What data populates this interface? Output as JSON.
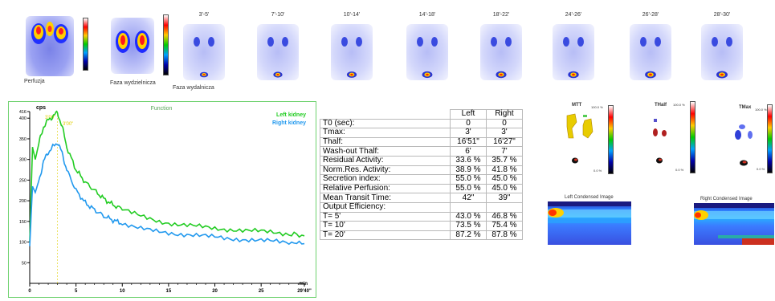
{
  "top_strip": {
    "labels": {
      "perfusion": "Perfuzja",
      "excretion_1": "Faza wydzielnicza",
      "excretion_2": "Faza wydalnicza"
    },
    "time_frames": [
      "3'-5'",
      "7'-10'",
      "10'-14'",
      "14'-18'",
      "18'-22'",
      "24'-26'",
      "26'-28'",
      "28'-30'"
    ]
  },
  "chart_data": {
    "type": "line",
    "title": "Function",
    "ylabel": "cps",
    "xlabel": "min",
    "ylim": [
      0,
      416
    ],
    "xlim": [
      0,
      29.67
    ],
    "y_ticks": [
      50,
      100,
      150,
      200,
      250,
      300,
      350,
      400,
      416
    ],
    "x_ticks": [
      "0",
      "5",
      "10",
      "15",
      "20",
      "25",
      "29'40\""
    ],
    "annotations": [
      "3'00\"",
      "3'00\""
    ],
    "series": [
      {
        "name": "Left kidney",
        "color": "#22cc22",
        "x": [
          0,
          0.3,
          0.6,
          1.0,
          1.5,
          2.0,
          2.5,
          3.0,
          3.5,
          4.0,
          5.0,
          6.0,
          7.0,
          8.0,
          9.0,
          10.0,
          12.0,
          14.0,
          16.0,
          18.0,
          20.0,
          22.0,
          24.0,
          26.0,
          28.0,
          29.67
        ],
        "y": [
          100,
          330,
          300,
          340,
          380,
          395,
          405,
          413,
          380,
          330,
          275,
          245,
          225,
          205,
          190,
          180,
          162,
          150,
          143,
          138,
          133,
          130,
          127,
          124,
          120,
          115
        ]
      },
      {
        "name": "Right kidney",
        "color": "#2299ee",
        "x": [
          0,
          0.3,
          0.6,
          1.0,
          1.5,
          2.0,
          2.5,
          3.0,
          3.5,
          4.0,
          5.0,
          6.0,
          7.0,
          8.0,
          9.0,
          10.0,
          12.0,
          14.0,
          16.0,
          18.0,
          20.0,
          22.0,
          24.0,
          26.0,
          28.0,
          29.67
        ],
        "y": [
          90,
          235,
          220,
          250,
          295,
          318,
          330,
          342,
          315,
          275,
          225,
          195,
          178,
          163,
          153,
          145,
          132,
          125,
          120,
          116,
          112,
          108,
          105,
          102,
          99,
          96
        ]
      }
    ]
  },
  "table": {
    "headers": [
      "",
      "Left",
      "Right"
    ],
    "rows": [
      [
        "T0 (sec):",
        "0",
        "0"
      ],
      [
        "Tmax:",
        "3'",
        "3'"
      ],
      [
        "Thalf:",
        "16'51\"",
        "16'27\""
      ],
      [
        "Wash-out Thalf:",
        "6'",
        "7'"
      ],
      [
        "Residual Activity:",
        "33.6 %",
        "35.7 %"
      ],
      [
        "Norm.Res. Activity:",
        "38.9 %",
        "41.8 %"
      ],
      [
        "Secretion index:",
        "55.0 %",
        "45.0 %"
      ],
      [
        "Relative Perfusion:",
        "55.0 %",
        "45.0 %"
      ],
      [
        "Mean Transit Time:",
        "42\"",
        "39\""
      ],
      [
        "Output Efficiency:",
        "",
        ""
      ],
      [
        "T=  5'",
        "43.0 %",
        "46.8 %"
      ],
      [
        "T= 10'",
        "73.5 %",
        "75.4 %"
      ],
      [
        "T= 20'",
        "87.2 %",
        "87.8 %"
      ]
    ]
  },
  "parametric": {
    "titles": [
      "MTT",
      "THalf",
      "TMax"
    ],
    "scale_top": "100.0 %",
    "scale_bottom": "0.0 %"
  },
  "condensed": {
    "left_title": "Left Condensed Image",
    "right_title": "Right Condensed Image"
  }
}
